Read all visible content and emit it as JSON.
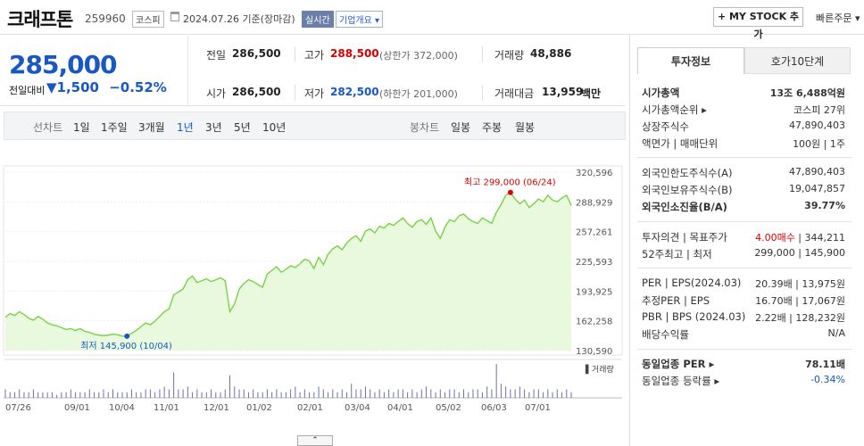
{
  "header": {
    "name": "크래프톤",
    "code": "259960",
    "market": "코스피",
    "date": "2024.07.26 기준(장마감)",
    "realtime": "실시간",
    "corp_info": "기업개요 ▾",
    "mystock": "+ MY STOCK 추가",
    "quick_order": "빠른주문 ▾"
  },
  "quote": {
    "price": "285,000",
    "change_label": "전일대비",
    "change_value": "▼1,500",
    "change_rate": "−0.52%",
    "prev_label": "전일",
    "prev": "286,500",
    "high_label": "고가",
    "high": "288,500",
    "upper_limit": "(상한가 372,000)",
    "volume_label": "거래량",
    "volume": "48,886",
    "open_label": "시가",
    "open": "286,500",
    "low_label": "저가",
    "low": "282,500",
    "lower_limit": "(하한가 201,000)",
    "amount_label": "거래대금",
    "amount": "13,959",
    "amount_unit": "백만"
  },
  "periods": {
    "line_label": "선차트",
    "line": [
      "1일",
      "1주일",
      "3개월",
      "1년",
      "3년",
      "5년",
      "10년"
    ],
    "selected": "1년",
    "candle_label": "봉차트",
    "candle": [
      "일봉",
      "주봉",
      "월봉"
    ]
  },
  "chart_data": {
    "type": "area",
    "y_ticks": [
      "320,596",
      "288,929",
      "257,261",
      "225,593",
      "193,925",
      "162,258",
      "130,590"
    ],
    "ylim": [
      130590,
      320596
    ],
    "x_ticks": [
      "07/26",
      "09/01",
      "10/04",
      "11/01",
      "12/01",
      "01/02",
      "02/01",
      "03/04",
      "04/01",
      "05/02",
      "06/03",
      "07/01"
    ],
    "high_label": "최고 299,000 (06/24)",
    "low_label": "최저 145,900 (10/04)",
    "volume_label": "거래량",
    "price_series": [
      166000,
      170000,
      168000,
      172000,
      169000,
      165000,
      163000,
      167000,
      164000,
      160000,
      158000,
      157000,
      155000,
      153000,
      154000,
      152000,
      154000,
      151000,
      150000,
      148000,
      147000,
      146500,
      147000,
      148000,
      147500,
      146000,
      145900,
      149000,
      152000,
      156000,
      160000,
      158000,
      162000,
      167000,
      172000,
      175000,
      190000,
      193000,
      196000,
      206000,
      210000,
      203000,
      205000,
      207000,
      204000,
      206000,
      208000,
      205000,
      172000,
      180000,
      196000,
      202000,
      206000,
      204000,
      201000,
      198000,
      212000,
      216000,
      220000,
      214000,
      217000,
      221000,
      219000,
      223000,
      228000,
      226000,
      218000,
      230000,
      222000,
      233000,
      239000,
      242000,
      238000,
      245000,
      250000,
      253000,
      247000,
      258000,
      260000,
      256000,
      263000,
      261000,
      266000,
      264000,
      268000,
      272000,
      266000,
      262000,
      268000,
      270000,
      265000,
      272000,
      258000,
      250000,
      262000,
      270000,
      268000,
      274000,
      276000,
      271000,
      268000,
      266000,
      272000,
      269000,
      266000,
      278000,
      286000,
      296000,
      299000,
      292000,
      287000,
      291000,
      283000,
      287000,
      292000,
      289000,
      296000,
      291000,
      289000,
      293000,
      296000,
      285000
    ],
    "volume_series": [
      3,
      2,
      2,
      3,
      2,
      2,
      3,
      2,
      2,
      2,
      2,
      1,
      2,
      2,
      3,
      2,
      2,
      2,
      3,
      2,
      2,
      3,
      2,
      3,
      2,
      2,
      2,
      3,
      2,
      2,
      3,
      3,
      2,
      3,
      4,
      3,
      9,
      3,
      3,
      4,
      2,
      3,
      2,
      2,
      3,
      2,
      2,
      3,
      8,
      4,
      3,
      3,
      2,
      3,
      2,
      2,
      3,
      2,
      3,
      2,
      2,
      3,
      4,
      2,
      3,
      2,
      2,
      4,
      3,
      2,
      3,
      2,
      3,
      2,
      5,
      3,
      3,
      4,
      3,
      2,
      3,
      2,
      3,
      2,
      3,
      3,
      2,
      3,
      2,
      3,
      4,
      3,
      2,
      3,
      2,
      3,
      3,
      2,
      3,
      2,
      3,
      3,
      2,
      4,
      3,
      12,
      5,
      4,
      3,
      3,
      4,
      3,
      2,
      3,
      3,
      2,
      3,
      2,
      3,
      2,
      3,
      2
    ]
  },
  "invest": {
    "tab1": "투자정보",
    "tab2": "호가10단계",
    "rows": [
      {
        "label": "시가총액",
        "value": "13조 6,488억원",
        "bold": true
      },
      {
        "label": "시가총액순위 ▸",
        "value": "코스피 27위"
      },
      {
        "label": "상장주식수",
        "value": "47,890,403"
      },
      {
        "label": "액면가 | 매매단위",
        "value": "100원 | 1주"
      },
      {
        "label": "외국인한도주식수(A)",
        "value": "47,890,403"
      },
      {
        "label": "외국인보유주식수(B)",
        "value": "19,047,857"
      },
      {
        "label": "외국인소진율(B/A)",
        "value": "39.77%",
        "bold": true
      },
      {
        "label": "투자의견 | 목표주가",
        "value": "4.00매수 | 344,211"
      },
      {
        "label": "52주최고 | 최저",
        "value": "299,000 | 145,900"
      },
      {
        "label": "PER | EPS(2024.03)",
        "value": "20.39배 | 13,975원"
      },
      {
        "label": "추정PER | EPS",
        "value": "16.70배 | 17,067원"
      },
      {
        "label": "PBR | BPS (2024.03)",
        "value": "2.22배 | 128,232원"
      },
      {
        "label": "배당수익률",
        "value": "N/A"
      },
      {
        "label": "동일업종 PER ▸",
        "value": "78.11배",
        "bold": true
      },
      {
        "label": "동일업종 등락률 ▸",
        "value": "-0.34%"
      }
    ],
    "opinion_value": "4.00매수",
    "target_price": "344,211",
    "same_rate_color": "#1957c2"
  },
  "colors": {
    "accent_blue": "#1957c2",
    "accent_red": "#d60000",
    "chart_line": "#6fd13a",
    "chart_fill": "#e8f9dd"
  },
  "toggle": "⌃"
}
